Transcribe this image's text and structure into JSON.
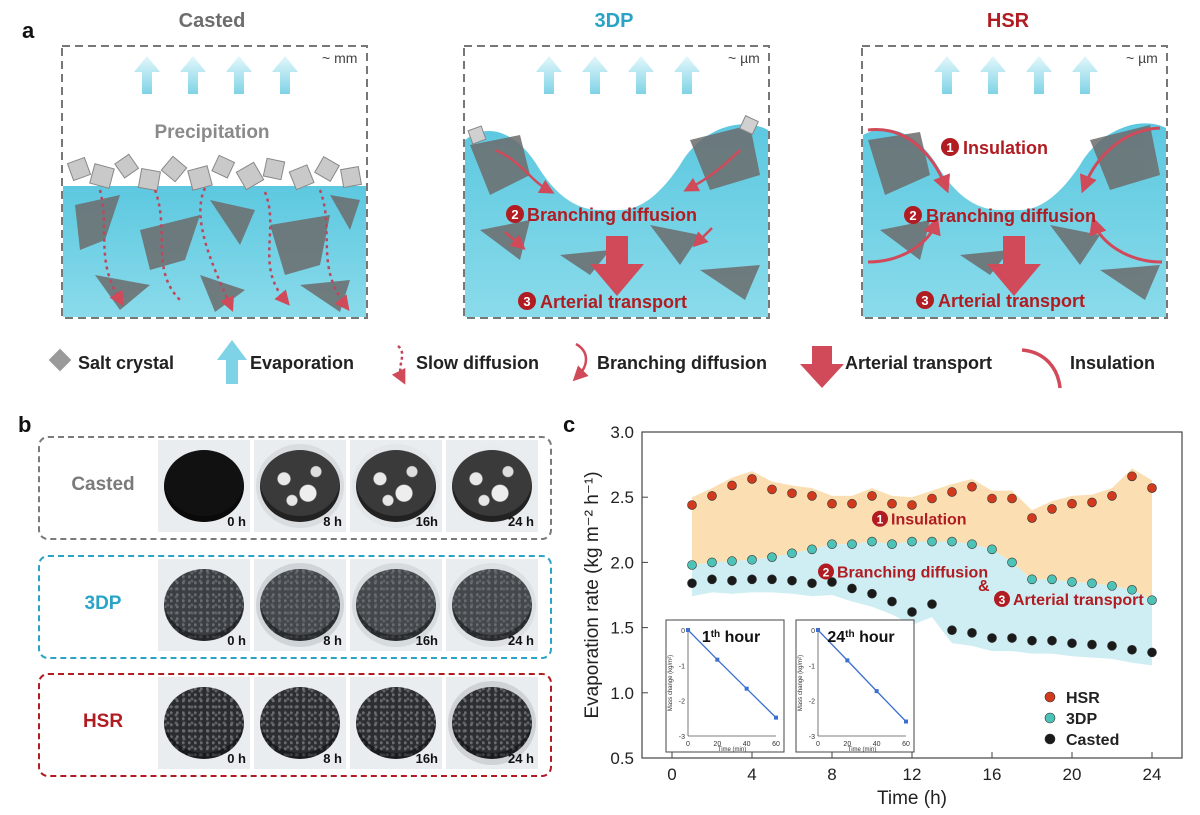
{
  "panel_a": {
    "letter": "a",
    "titles": {
      "casted": "Casted",
      "threedp": "3DP",
      "hsr": "HSR"
    },
    "scales": {
      "casted": "~ mm",
      "threedp": "~ µm",
      "hsr": "~ µm"
    },
    "casted_label": "Precipitation",
    "num": {
      "one": "1",
      "two": "2",
      "three": "3"
    },
    "labels": {
      "insulation": "Insulation",
      "branching": "Branching diffusion",
      "arterial": "Arterial transport"
    },
    "colors": {
      "casted": "#6d6d6d",
      "threedp": "#2aa3c6",
      "hsr": "#b01c22",
      "water": "#6cd0e8",
      "arrow": "#d04a5a"
    }
  },
  "legend": {
    "salt": "Salt crystal",
    "evaporation": "Evaporation",
    "slow": "Slow diffusion",
    "branching": "Branching diffusion",
    "arterial": "Arterial transport",
    "insulation": "Insulation"
  },
  "panel_b": {
    "letter": "b",
    "rows": [
      {
        "label": "Casted",
        "color": "#7a7a7a",
        "times": [
          "0 h",
          "8 h",
          "16h",
          "24 h"
        ]
      },
      {
        "label": "3DP",
        "color": "#2aa3c6",
        "times": [
          "0 h",
          "8 h",
          "16h",
          "24 h"
        ]
      },
      {
        "label": "HSR",
        "color": "#b01c22",
        "times": [
          "0 h",
          "8 h",
          "16h",
          "24 h"
        ]
      }
    ]
  },
  "panel_c": {
    "letter": "c",
    "annotations": {
      "amp": "&"
    },
    "insets": [
      {
        "title_pre": "1",
        "title_sup": "th",
        "title_post": " hour"
      },
      {
        "title_pre": "24",
        "title_sup": "th",
        "title_post": " hour"
      }
    ],
    "inset_ylabel": "Mass change (kg/m²)",
    "inset_xlabel": "Time (min)",
    "inset_xticks": [
      "0",
      "20",
      "40",
      "60"
    ],
    "inset_yticks": [
      "0",
      "-1",
      "-2",
      "-3"
    ]
  },
  "chart_data": {
    "type": "scatter",
    "xlabel": "Time (h)",
    "ylabel": "Evaporation rate (kg m⁻² h⁻¹)",
    "xlim": [
      -1.5,
      25.5
    ],
    "ylim": [
      0.5,
      3.0
    ],
    "xticks": [
      0,
      4,
      8,
      12,
      16,
      20,
      24
    ],
    "yticks": [
      0.5,
      1.0,
      1.5,
      2.0,
      2.5,
      3.0
    ],
    "xtick_labels": [
      "0",
      "4",
      "8",
      "12",
      "16",
      "20",
      "24"
    ],
    "ytick_labels": [
      "0.5",
      "1.0",
      "1.5",
      "2.0",
      "2.5",
      "3.0"
    ],
    "legend_position": "bottom-right",
    "series": [
      {
        "name": "HSR",
        "color": "#d23a1e",
        "x": [
          1,
          2,
          3,
          4,
          5,
          6,
          7,
          8,
          9,
          10,
          11,
          12,
          13,
          14,
          15,
          16,
          17,
          18,
          19,
          20,
          21,
          22,
          23,
          24
        ],
        "y": [
          2.44,
          2.51,
          2.59,
          2.64,
          2.56,
          2.53,
          2.51,
          2.45,
          2.45,
          2.51,
          2.45,
          2.44,
          2.49,
          2.54,
          2.58,
          2.49,
          2.49,
          2.34,
          2.41,
          2.45,
          2.46,
          2.51,
          2.66,
          2.57
        ]
      },
      {
        "name": "3DP",
        "color": "#4cc3b6",
        "x": [
          1,
          2,
          3,
          4,
          5,
          6,
          7,
          8,
          9,
          10,
          11,
          12,
          13,
          14,
          15,
          16,
          17,
          18,
          19,
          20,
          21,
          22,
          23,
          24
        ],
        "y": [
          1.98,
          2.0,
          2.01,
          2.02,
          2.04,
          2.07,
          2.1,
          2.14,
          2.14,
          2.16,
          2.14,
          2.16,
          2.16,
          2.16,
          2.14,
          2.1,
          2.0,
          1.87,
          1.87,
          1.85,
          1.84,
          1.82,
          1.79,
          1.71
        ]
      },
      {
        "name": "Casted",
        "color": "#1a1a1a",
        "x": [
          1,
          2,
          3,
          4,
          5,
          6,
          7,
          8,
          9,
          10,
          11,
          12,
          13,
          14,
          15,
          16,
          17,
          18,
          19,
          20,
          21,
          22,
          23,
          24
        ],
        "y": [
          1.84,
          1.87,
          1.86,
          1.87,
          1.87,
          1.86,
          1.84,
          1.85,
          1.8,
          1.76,
          1.7,
          1.62,
          1.68,
          1.48,
          1.46,
          1.42,
          1.42,
          1.4,
          1.4,
          1.38,
          1.37,
          1.36,
          1.33,
          1.31
        ]
      }
    ],
    "bands": {
      "colors": [
        "#fbdcaa",
        "#c9ecf2"
      ]
    },
    "insets": [
      {
        "x": [
          0,
          20,
          40,
          60
        ],
        "y": [
          0,
          -0.84,
          -1.66,
          -2.48
        ],
        "color": "#3b6fd0"
      },
      {
        "x": [
          0,
          20,
          40,
          60
        ],
        "y": [
          0,
          -0.86,
          -1.73,
          -2.59
        ],
        "color": "#3b6fd0"
      }
    ]
  }
}
